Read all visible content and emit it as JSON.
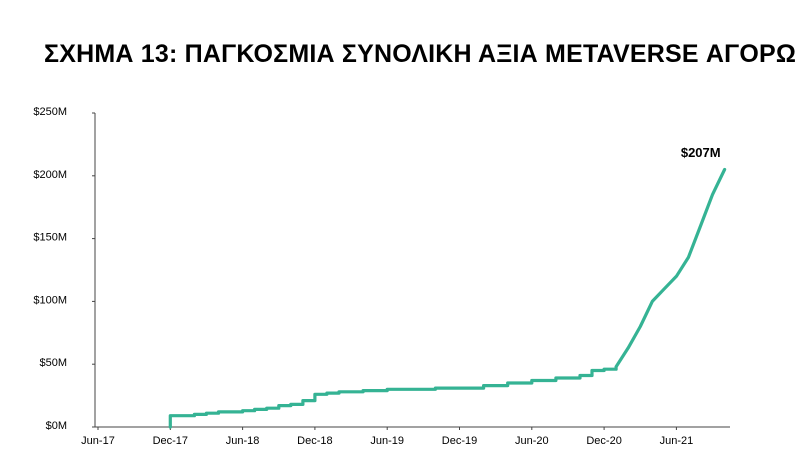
{
  "chart_data": {
    "type": "line",
    "title": "ΣΧΗΜΑ 13: ΠΑΓΚΟΣΜΙΑ ΣΥΝΟΛΙΚΗ ΑΞΙΑ METAVERSE ΑΓΟΡΩΝ",
    "xlabel": "",
    "ylabel": "",
    "x_ticks": [
      "Jun-17",
      "Dec-17",
      "Jun-18",
      "Dec-18",
      "Jun-19",
      "Dec-19",
      "Jun-20",
      "Dec-20",
      "Jun-21"
    ],
    "y_ticks": [
      "$0M",
      "$50M",
      "$100M",
      "$150M",
      "$200M",
      "$250M"
    ],
    "ylim": [
      0,
      250
    ],
    "xlim": [
      "2017-06",
      "2021-10"
    ],
    "grid": false,
    "series": [
      {
        "color": "#35b394",
        "x": [
          "2017-12",
          "2017-12",
          "2018-01",
          "2018-02",
          "2018-03",
          "2018-04",
          "2018-05",
          "2018-06",
          "2018-07",
          "2018-08",
          "2018-09",
          "2018-10",
          "2018-11",
          "2018-12",
          "2018-12",
          "2019-01",
          "2019-02",
          "2019-03",
          "2019-04",
          "2019-06",
          "2019-08",
          "2019-10",
          "2019-12",
          "2020-02",
          "2020-04",
          "2020-06",
          "2020-08",
          "2020-10",
          "2020-11",
          "2020-12",
          "2021-01",
          "2021-02",
          "2021-03",
          "2021-04",
          "2021-05",
          "2021-06",
          "2021-07",
          "2021-08",
          "2021-09",
          "2021-10"
        ],
        "y": [
          0,
          9,
          9,
          10,
          11,
          12,
          12,
          13,
          14,
          15,
          17,
          18,
          21,
          22,
          26,
          27,
          28,
          28,
          29,
          30,
          30,
          31,
          31,
          33,
          35,
          37,
          39,
          41,
          45,
          46,
          48,
          63,
          80,
          100,
          110,
          120,
          135,
          160,
          185,
          205
        ]
      }
    ],
    "annotations": [
      {
        "text": "$207M",
        "x": "2021-10",
        "y": 207
      }
    ]
  }
}
